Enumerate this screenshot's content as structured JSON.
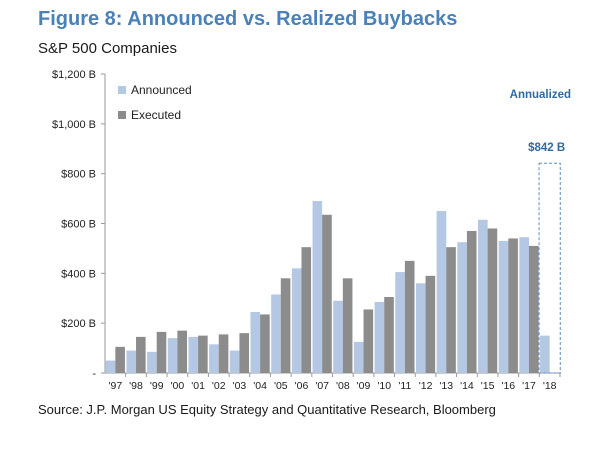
{
  "header": {
    "title": "Figure 8: Announced vs. Realized Buybacks",
    "subtitle": "S&P 500 Companies"
  },
  "footer": {
    "source": "Source: J.P. Morgan US Equity Strategy and Quantitative Research, Bloomberg"
  },
  "colors": {
    "title": "#4a81b8",
    "announced": "#b4c7e3",
    "executed": "#8c8c8c",
    "annotation": "#2f6aa3"
  },
  "chart_data": {
    "type": "bar",
    "title": "Figure 8: Announced vs. Realized Buybacks",
    "subtitle": "S&P 500 Companies",
    "xlabel": "",
    "ylabel": "",
    "ylim": [
      0,
      1200
    ],
    "y_ticks": [
      {
        "value": 0,
        "label": "-"
      },
      {
        "value": 200,
        "label": "$200 B"
      },
      {
        "value": 400,
        "label": "$400 B"
      },
      {
        "value": 600,
        "label": "$600 B"
      },
      {
        "value": 800,
        "label": "$800 B"
      },
      {
        "value": 1000,
        "label": "$1,000 B"
      },
      {
        "value": 1200,
        "label": "$1,200 B"
      }
    ],
    "grid": false,
    "legend_position": "top-left",
    "categories": [
      "'97",
      "'98",
      "'99",
      "'00",
      "'01",
      "'02",
      "'03",
      "'04",
      "'05",
      "'06",
      "'07",
      "'08",
      "'09",
      "'10",
      "'11",
      "'12",
      "'13",
      "'14",
      "'15",
      "'16",
      "'17",
      "'18"
    ],
    "series": [
      {
        "name": "Announced",
        "color": "#b4c7e3",
        "values": [
          50,
          90,
          85,
          140,
          145,
          115,
          90,
          245,
          315,
          420,
          690,
          290,
          125,
          285,
          405,
          360,
          650,
          525,
          615,
          530,
          545,
          150
        ]
      },
      {
        "name": "Executed",
        "color": "#8c8c8c",
        "values": [
          105,
          145,
          165,
          170,
          150,
          155,
          160,
          235,
          380,
          505,
          635,
          380,
          255,
          305,
          450,
          390,
          505,
          570,
          580,
          540,
          510,
          null
        ]
      }
    ],
    "annotations": [
      {
        "label": "Annualized",
        "x": "'18",
        "position": "top-right"
      },
      {
        "label": "$842 B",
        "x": "'18",
        "value": 842,
        "style": "dashed-box"
      }
    ]
  }
}
